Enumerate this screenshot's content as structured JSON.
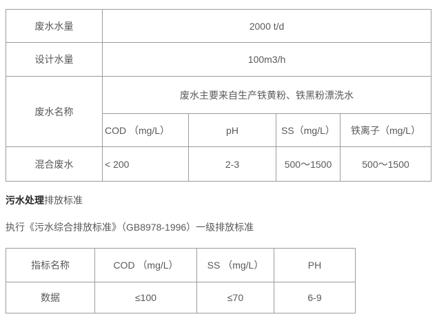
{
  "colors": {
    "background": "#ffffff",
    "text": "#595959",
    "heading_bold_text": "#262626",
    "table_border": "#9b9b9b"
  },
  "table1": {
    "wastewater_volume": {
      "label": "废水水量",
      "value": "2000 t/d"
    },
    "design_flow": {
      "label": "设计水量",
      "value": "100m3/h"
    },
    "wastewater_name": {
      "label": "废水名称",
      "source_note": "废水主要来自生产铁黄粉、铁黑粉漂洗水"
    },
    "param_headers": [
      "COD （mg/L）",
      "pH",
      "SS（mg/L）",
      "铁离子（mg/L）"
    ],
    "mixed_row": {
      "label": "混合废水",
      "cod": "< 200",
      "ph": "2-3",
      "ss": "500～1500",
      "iron": "500～1500"
    }
  },
  "standards_section": {
    "heading_bold": "污水处理",
    "heading_normal": "排放标准",
    "paragraph": "执行《污水综合排放标准》（GB8978-1996）一级排放标准"
  },
  "table2": {
    "headers": [
      "指标名称",
      "COD （mg/L）",
      "SS （mg/L）",
      "PH"
    ],
    "data": [
      "数据",
      "≤100",
      "≤70",
      "6-9"
    ]
  }
}
